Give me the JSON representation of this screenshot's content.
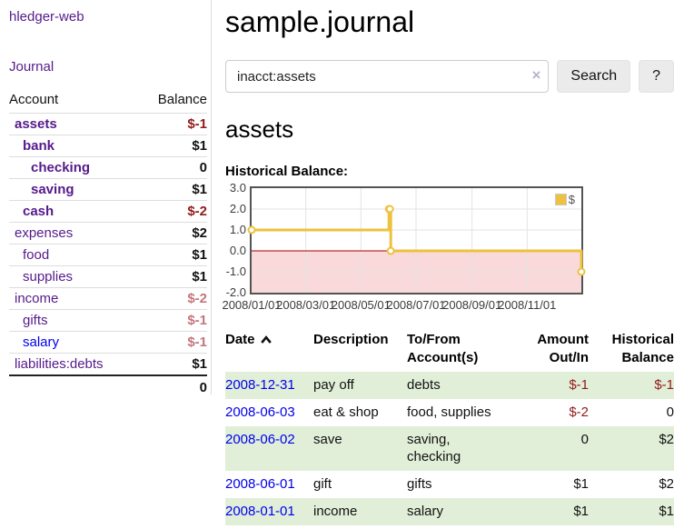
{
  "colors": {
    "link_visited_purple": "#551a8b",
    "link_unvisited_blue": "#0000ee",
    "negative_strong": "#941a1a",
    "negative_muted": "#c4757d",
    "row_stripe_green": "#e1efd8",
    "chart_line_gold": "#edc240",
    "chart_negative_region_pink": "#f9d9d9",
    "chart_zero_line_red": "#a40000",
    "chart_border_gray": "#545454"
  },
  "sidebar": {
    "brand": "hledger-web",
    "journal_link": "Journal",
    "accounts": {
      "headers": [
        "Account",
        "Balance"
      ],
      "rows": [
        {
          "name": "assets",
          "indent": 1,
          "bold": true,
          "link": "visited",
          "balance": "$-1",
          "balance_class": "neg-strong"
        },
        {
          "name": "bank",
          "indent": 2,
          "bold": true,
          "link": "visited",
          "balance": "$1",
          "balance_class": "pos"
        },
        {
          "name": "checking",
          "indent": 3,
          "bold": true,
          "link": "visited",
          "balance": "0",
          "balance_class": "pos"
        },
        {
          "name": "saving",
          "indent": 3,
          "bold": true,
          "link": "visited",
          "balance": "$1",
          "balance_class": "pos"
        },
        {
          "name": "cash",
          "indent": 2,
          "bold": true,
          "link": "visited",
          "balance": "$-2",
          "balance_class": "neg-strong"
        },
        {
          "name": "expenses",
          "indent": 1,
          "bold": false,
          "link": "visited",
          "balance": "$2",
          "balance_class": "pos"
        },
        {
          "name": "food",
          "indent": 2,
          "bold": false,
          "link": "visited",
          "balance": "$1",
          "balance_class": "pos"
        },
        {
          "name": "supplies",
          "indent": 2,
          "bold": false,
          "link": "visited",
          "balance": "$1",
          "balance_class": "pos"
        },
        {
          "name": "income",
          "indent": 1,
          "bold": false,
          "link": "visited",
          "balance": "$-2",
          "balance_class": "neg-muted"
        },
        {
          "name": "gifts",
          "indent": 2,
          "bold": false,
          "link": "visited",
          "balance": "$-1",
          "balance_class": "neg-muted"
        },
        {
          "name": "salary",
          "indent": 2,
          "bold": false,
          "link": "unvisited",
          "balance": "$-1",
          "balance_class": "neg-muted"
        },
        {
          "name": "liabilities:debts",
          "indent": 1,
          "bold": false,
          "link": "visited",
          "balance": "$1",
          "balance_class": "pos"
        }
      ],
      "total": "0"
    }
  },
  "main": {
    "title": "sample.journal",
    "search": {
      "value": "inacct:assets",
      "clear_icon": "×",
      "button_label": "Search",
      "help_label": "?"
    },
    "account_heading": "assets",
    "chart_title": "Historical Balance:"
  },
  "chart_data": {
    "type": "line",
    "steps": true,
    "title": "Historical Balance",
    "x_range": [
      "2008-01-01",
      "2008-12-31"
    ],
    "ylim": [
      -2,
      3
    ],
    "series": [
      {
        "name": "$",
        "color": "#edc240",
        "points": [
          [
            "2008-01-01",
            1
          ],
          [
            "2008-06-01",
            2
          ],
          [
            "2008-06-02",
            2
          ],
          [
            "2008-06-03",
            0
          ],
          [
            "2008-12-31",
            -1
          ]
        ]
      }
    ],
    "x_ticks": [
      {
        "label": "2008/01/01",
        "date": "2008-01-01"
      },
      {
        "label": "2008/03/01",
        "date": "2008-03-01"
      },
      {
        "label": "2008/05/01",
        "date": "2008-05-01"
      },
      {
        "label": "2008/07/01",
        "date": "2008-07-01"
      },
      {
        "label": "2008/09/01",
        "date": "2008-09-01"
      },
      {
        "label": "2008/11/01",
        "date": "2008-11-01"
      }
    ],
    "y_ticks": [
      {
        "label": "3.0",
        "value": 3
      },
      {
        "label": "2.0",
        "value": 2
      },
      {
        "label": "1.0",
        "value": 1
      },
      {
        "label": "0.0",
        "value": 0
      },
      {
        "label": "-1.0",
        "value": -1
      },
      {
        "label": "-2.0",
        "value": -2
      }
    ],
    "legend": {
      "label": "$",
      "position": "top-right"
    },
    "grid": true,
    "negative_region": true
  },
  "register": {
    "headers": {
      "date": "Date",
      "sort": "ascending",
      "description": "Description",
      "accounts": "To/From Account(s)",
      "amount": "Amount Out/In",
      "balance": "Historical Balance"
    },
    "rows": [
      {
        "date": "2008-12-31",
        "description": "pay off",
        "accounts": "debts",
        "amount": "$-1",
        "amount_neg": true,
        "balance": "$-1",
        "balance_neg": true,
        "stripe": true
      },
      {
        "date": "2008-06-03",
        "description": "eat & shop",
        "accounts": "food, supplies",
        "amount": "$-2",
        "amount_neg": true,
        "balance": "0",
        "balance_neg": false,
        "stripe": false
      },
      {
        "date": "2008-06-02",
        "description": "save",
        "accounts": "saving, checking",
        "amount": "0",
        "amount_neg": false,
        "balance": "$2",
        "balance_neg": false,
        "stripe": true
      },
      {
        "date": "2008-06-01",
        "description": "gift",
        "accounts": "gifts",
        "amount": "$1",
        "amount_neg": false,
        "balance": "$2",
        "balance_neg": false,
        "stripe": false
      },
      {
        "date": "2008-01-01",
        "description": "income",
        "accounts": "salary",
        "amount": "$1",
        "amount_neg": false,
        "balance": "$1",
        "balance_neg": false,
        "stripe": true
      }
    ]
  }
}
